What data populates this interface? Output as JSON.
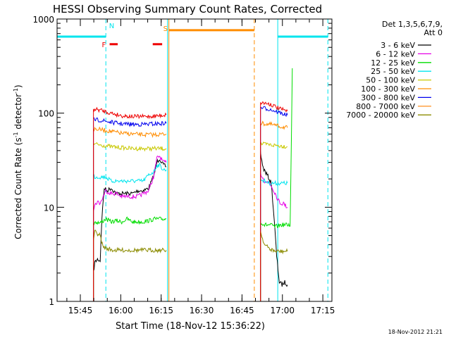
{
  "chart_data": {
    "type": "line",
    "title": "HESSI Observing Summary Count Rates, Corrected",
    "xlabel": "Start Time (18-Nov-12 15:36:22)",
    "ylabel_main": "Corrected Count Rate (s",
    "ylabel_sup1": "-1",
    "ylabel_mid": " detector",
    "ylabel_sup2": "-1",
    "ylabel_end": ")",
    "footer_date": "18-Nov-2012 21:21",
    "x_unit": "minutes after 15:36:22",
    "xlim": [
      0,
      102
    ],
    "ylim": [
      1,
      1000
    ],
    "y_scale": "log",
    "grid": false,
    "legend_position": "right",
    "x_ticks": [
      {
        "value": 8.63,
        "label": "15:45"
      },
      {
        "value": 23.63,
        "label": "16:00"
      },
      {
        "value": 38.63,
        "label": "16:15"
      },
      {
        "value": 53.63,
        "label": "16:30"
      },
      {
        "value": 68.63,
        "label": "16:45"
      },
      {
        "value": 83.63,
        "label": "17:00"
      },
      {
        "value": 98.63,
        "label": "17:15"
      }
    ],
    "y_ticks": [
      {
        "value": 1,
        "label": "1"
      },
      {
        "value": 10,
        "label": "10"
      },
      {
        "value": 100,
        "label": "100"
      },
      {
        "value": 1000,
        "label": "1000"
      }
    ],
    "legend_header": [
      "Det 1,3,5,6,7,9,",
      "Att 0"
    ],
    "series": [
      {
        "name": "3 - 6 keV",
        "color": "#000000",
        "segments": [
          [
            [
              13.5,
              2.0
            ],
            [
              14,
              2.6
            ],
            [
              15,
              2.8
            ],
            [
              16,
              2.7
            ],
            [
              16.6,
              7.5
            ],
            [
              17.5,
              16
            ],
            [
              18.5,
              15
            ],
            [
              20,
              16
            ],
            [
              22,
              14
            ],
            [
              24,
              14
            ],
            [
              26,
              14
            ],
            [
              28,
              14
            ],
            [
              30,
              15
            ],
            [
              32,
              15
            ],
            [
              34,
              16
            ],
            [
              36,
              22
            ],
            [
              37,
              30
            ],
            [
              38,
              33
            ],
            [
              39.5,
              28
            ],
            [
              40.5,
              27
            ]
          ],
          [
            [
              75.5,
              38
            ],
            [
              76.5,
              26
            ],
            [
              78,
              22
            ],
            [
              79.5,
              18
            ],
            [
              80.5,
              8
            ],
            [
              81.5,
              3
            ],
            [
              82.5,
              1.6
            ],
            [
              83.5,
              1.5
            ],
            [
              84.5,
              1.6
            ],
            [
              85.5,
              1.5
            ]
          ]
        ]
      },
      {
        "name": "6 - 12 keV",
        "color": "#e600e6",
        "segments": [
          [
            [
              13.5,
              9.5
            ],
            [
              14,
              10.5
            ],
            [
              15,
              11.5
            ],
            [
              16,
              11
            ],
            [
              16.6,
              12
            ],
            [
              18,
              15
            ],
            [
              20,
              14
            ],
            [
              22,
              14
            ],
            [
              24,
              13
            ],
            [
              26,
              13
            ],
            [
              28,
              13
            ],
            [
              30,
              13
            ],
            [
              32,
              14
            ],
            [
              34,
              15
            ],
            [
              36,
              22
            ],
            [
              37,
              33
            ],
            [
              38,
              35
            ],
            [
              39.5,
              30
            ],
            [
              40.5,
              30
            ]
          ],
          [
            [
              75.5,
              23
            ],
            [
              77,
              19
            ],
            [
              79,
              18
            ],
            [
              81,
              14
            ],
            [
              82,
              12
            ],
            [
              83,
              11
            ],
            [
              84,
              11
            ],
            [
              85.5,
              10
            ]
          ]
        ]
      },
      {
        "name": "12 - 25 keV",
        "color": "#00dd00",
        "segments": [
          [
            [
              13.5,
              6.5
            ],
            [
              14,
              7
            ],
            [
              16,
              6.8
            ],
            [
              18,
              7.5
            ],
            [
              20,
              7
            ],
            [
              22,
              7.2
            ],
            [
              24,
              7
            ],
            [
              26,
              7.5
            ],
            [
              28,
              7
            ],
            [
              30,
              7
            ],
            [
              32,
              7
            ],
            [
              34,
              7.2
            ],
            [
              36,
              7.5
            ],
            [
              38,
              7.5
            ],
            [
              40.5,
              7.5
            ]
          ],
          [
            [
              75.5,
              7
            ],
            [
              77,
              6.5
            ],
            [
              79,
              6.5
            ],
            [
              81,
              6.2
            ],
            [
              83,
              6.5
            ],
            [
              85,
              6.5
            ],
            [
              86.5,
              6.5
            ],
            [
              87,
              60
            ],
            [
              87.3,
              300
            ]
          ]
        ]
      },
      {
        "name": "25 - 50 keV",
        "color": "#00e5ee",
        "segments": [
          [
            [
              13.5,
              22
            ],
            [
              14,
              21
            ],
            [
              16,
              21
            ],
            [
              18,
              21
            ],
            [
              20,
              19
            ],
            [
              22,
              19
            ],
            [
              24,
              19
            ],
            [
              26,
              19
            ],
            [
              28,
              19
            ],
            [
              30,
              19
            ],
            [
              32,
              19
            ],
            [
              34,
              22
            ],
            [
              36,
              24
            ],
            [
              37,
              28
            ],
            [
              38,
              28
            ],
            [
              39.5,
              25
            ],
            [
              40.5,
              25
            ]
          ],
          [
            [
              75.5,
              20
            ],
            [
              77,
              19
            ],
            [
              79,
              18
            ],
            [
              81,
              18
            ],
            [
              83,
              18
            ],
            [
              85.5,
              18
            ]
          ]
        ]
      },
      {
        "name": "50 - 100 keV",
        "color": "#c8c800",
        "segments": [
          [
            [
              13.5,
              47
            ],
            [
              16,
              46
            ],
            [
              20,
              44
            ],
            [
              24,
              43
            ],
            [
              28,
              42
            ],
            [
              32,
              42
            ],
            [
              36,
              42
            ],
            [
              40.5,
              42
            ]
          ],
          [
            [
              75.5,
              47
            ],
            [
              79,
              46
            ],
            [
              83,
              45
            ],
            [
              85.5,
              44
            ]
          ]
        ]
      },
      {
        "name": "100 - 300 keV",
        "color": "#ff8c00",
        "segments": [
          [
            [
              13.5,
              68
            ],
            [
              16,
              67
            ],
            [
              20,
              64
            ],
            [
              24,
              61
            ],
            [
              28,
              60
            ],
            [
              32,
              59
            ],
            [
              36,
              59
            ],
            [
              40.5,
              60
            ]
          ],
          [
            [
              75.5,
              78
            ],
            [
              79,
              76
            ],
            [
              83,
              72
            ],
            [
              85.5,
              70
            ]
          ]
        ]
      },
      {
        "name": "300 - 800 keV",
        "color": "#0000ee",
        "segments": [
          [
            [
              13.5,
              85
            ],
            [
              16,
              84
            ],
            [
              20,
              80
            ],
            [
              24,
              77
            ],
            [
              28,
              76
            ],
            [
              32,
              76
            ],
            [
              36,
              77
            ],
            [
              40.5,
              78
            ]
          ],
          [
            [
              75.5,
              115
            ],
            [
              79,
              110
            ],
            [
              83,
              100
            ],
            [
              85.5,
              95
            ]
          ]
        ]
      },
      {
        "name": "800 - 7000 keV",
        "color": "#ff9933",
        "segments": []
      },
      {
        "name": "7000 - 20000 keV",
        "color": "#8b8b00",
        "segments": [
          [
            [
              13.5,
              4.5
            ],
            [
              14,
              5.5
            ],
            [
              16,
              5
            ],
            [
              17,
              3.8
            ],
            [
              19,
              3.6
            ],
            [
              21,
              3.5
            ],
            [
              24,
              3.5
            ],
            [
              28,
              3.5
            ],
            [
              32,
              3.5
            ],
            [
              36,
              3.5
            ],
            [
              40.5,
              3.5
            ]
          ],
          [
            [
              75.5,
              5.5
            ],
            [
              77,
              4
            ],
            [
              79,
              3.6
            ],
            [
              81,
              3.4
            ],
            [
              83,
              3.4
            ],
            [
              85.5,
              3.4
            ]
          ]
        ]
      }
    ],
    "red_series": {
      "color": "#ee0000",
      "segments": [
        [
          [
            13.5,
            110
          ],
          [
            16,
            108
          ],
          [
            20,
            100
          ],
          [
            24,
            94
          ],
          [
            28,
            92
          ],
          [
            32,
            92
          ],
          [
            36,
            93
          ],
          [
            40.5,
            96
          ]
        ],
        [
          [
            75.5,
            130
          ],
          [
            79,
            125
          ],
          [
            83,
            110
          ],
          [
            85.5,
            105
          ]
        ]
      ]
    },
    "annotations": {
      "eclipse_bars": [
        {
          "x0": 0,
          "x1": 18.1,
          "y": 650,
          "color": "#00e5ee"
        },
        {
          "x0": 81.9,
          "x1": 100.5,
          "y": 650,
          "color": "#00e5ee"
        }
      ],
      "saa_bar": {
        "x0": 41.5,
        "x1": 73.2,
        "y": 760,
        "color": "#ff8c00",
        "label": "S"
      },
      "flare_marks": [
        {
          "x0": 19.5,
          "x1": 22.5,
          "y": 540,
          "color": "#ee0000",
          "label": "F"
        },
        {
          "x0": 35.5,
          "x1": 39.0,
          "y": 540,
          "color": "#ee0000"
        }
      ],
      "night_label": {
        "text": "N",
        "x": 19.3,
        "y": 800,
        "color": "#00e5ee"
      },
      "vlines": [
        {
          "x": 18.1,
          "color": "#00e5ee",
          "dashed": true
        },
        {
          "x": 41.0,
          "color": "#00e5ee",
          "dashed": false
        },
        {
          "x": 41.5,
          "color": "#ff8c00",
          "dashed": false
        },
        {
          "x": 73.2,
          "color": "#ff8c00",
          "dashed": true
        },
        {
          "x": 81.9,
          "color": "#00e5ee",
          "dashed": false
        },
        {
          "x": 100.5,
          "color": "#00e5ee",
          "dashed": true
        }
      ]
    }
  }
}
